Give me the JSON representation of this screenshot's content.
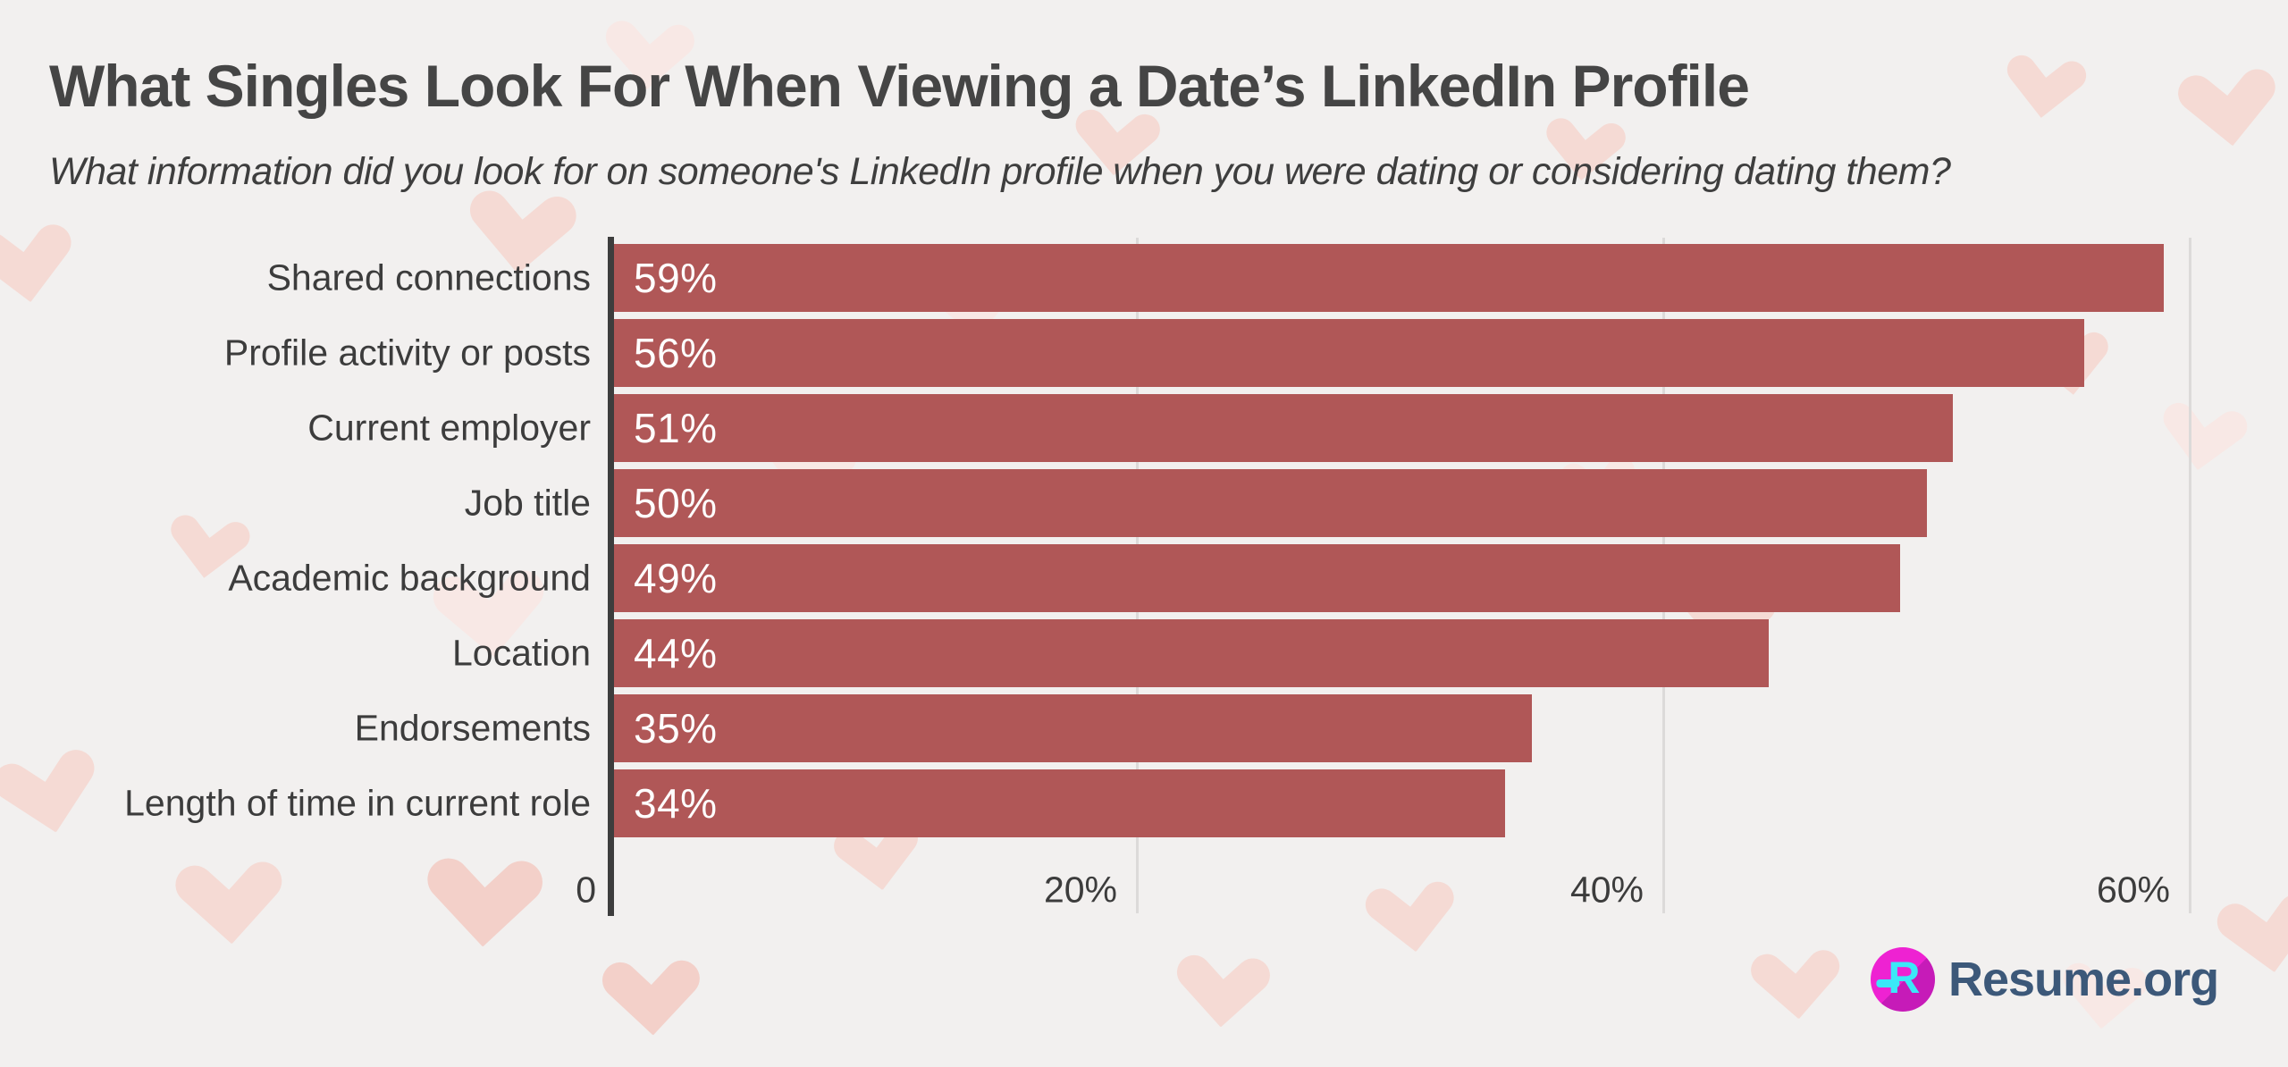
{
  "page": {
    "background_color": "#f2f0ef"
  },
  "header": {
    "title": "What Singles Look For When Viewing a Date’s LinkedIn Profile",
    "subtitle": "What information did you look for on someone's LinkedIn profile when you were dating or considering dating them?"
  },
  "chart_data": {
    "type": "bar",
    "orientation": "horizontal",
    "title": "What Singles Look For When Viewing a Date’s LinkedIn Profile",
    "subtitle": "What information did you look for on someone's LinkedIn profile when you were dating or considering dating them?",
    "categories": [
      "Shared connections",
      "Profile activity or posts",
      "Current employer",
      "Job title",
      "Academic background",
      "Location",
      "Endorsements",
      "Length of time in current role"
    ],
    "values": [
      59,
      56,
      51,
      50,
      49,
      44,
      35,
      34
    ],
    "data_labels": [
      "59%",
      "56%",
      "51%",
      "50%",
      "49%",
      "44%",
      "35%",
      "34%"
    ],
    "xlim": [
      0,
      60
    ],
    "x_ticks": [
      {
        "value": 0,
        "label": "0"
      },
      {
        "value": 20,
        "label": "20%"
      },
      {
        "value": 40,
        "label": "40%"
      },
      {
        "value": 60,
        "label": "60%"
      }
    ],
    "grid": true,
    "legend": "none",
    "bar_color": "#b05757",
    "axis_color": "#3d3d3d",
    "gridline_color": "#dcdad9",
    "label_color": "#3c3c3c",
    "value_text_color": "#ffffff"
  },
  "footer": {
    "brand": "Resume.org",
    "logo_letter": "R",
    "brand_color": "#3c5879",
    "logo_circle_color": "#ee22d2",
    "logo_letter_color": "#3be8f8"
  },
  "decor": {
    "pattern": "hearts",
    "heart_colors": [
      "#f8e8e5",
      "#f5dad4",
      "#f3d0c9"
    ]
  }
}
